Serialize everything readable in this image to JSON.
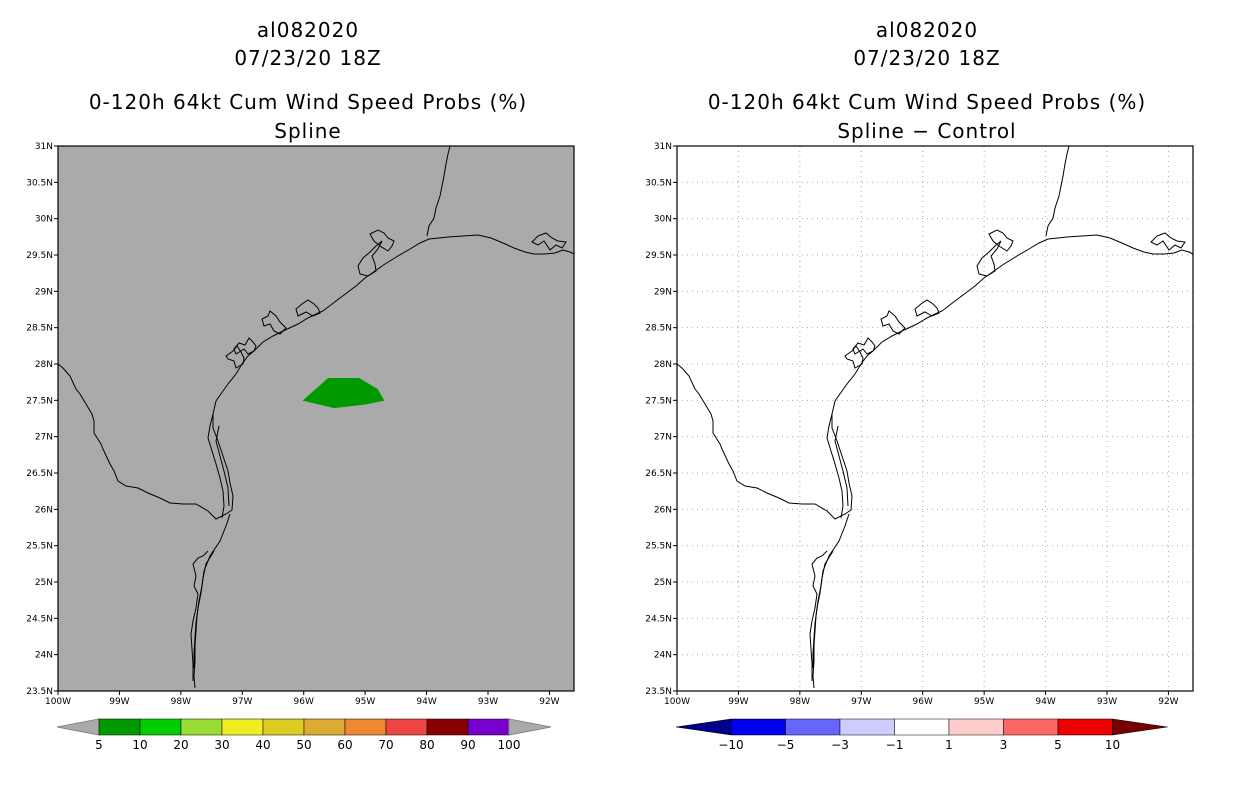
{
  "left_panel": {
    "storm_id": "al082020",
    "datetime": "07/23/20 18Z",
    "product": "0-120h 64kt Cum Wind Speed Probs (%)",
    "subtitle": "Spline",
    "background_color": "#aaaaaa",
    "colorbar": {
      "labels": [
        "5",
        "10",
        "20",
        "30",
        "40",
        "50",
        "60",
        "70",
        "80",
        "90",
        "100"
      ],
      "colors": [
        "#009900",
        "#00cc00",
        "#99dd33",
        "#eeee22",
        "#ddcc22",
        "#ddaa33",
        "#ee8833",
        "#ee4444",
        "#880000",
        "#7700cc"
      ],
      "end_color": "#aaaaaa"
    }
  },
  "right_panel": {
    "storm_id": "al082020",
    "datetime": "07/23/20 18Z",
    "product": "0-120h 64kt Cum Wind Speed Probs (%)",
    "subtitle": "Spline − Control",
    "background_color": "#ffffff",
    "colorbar": {
      "labels": [
        "−10",
        "−5",
        "−3",
        "−1",
        "1",
        "3",
        "5",
        "10"
      ],
      "colors": [
        "#0000ee",
        "#6666ff",
        "#ccccff",
        "#ffffff",
        "#ffcccc",
        "#ff6666",
        "#ee0000"
      ],
      "left_color": "#000088",
      "right_color": "#770000"
    }
  },
  "map": {
    "lat_labels": [
      "31N",
      "30.5N",
      "30N",
      "29.5N",
      "29N",
      "28.5N",
      "28N",
      "27.5N",
      "27N",
      "26.5N",
      "26N",
      "25.5N",
      "25N",
      "24.5N",
      "24N",
      "23.5N"
    ],
    "lon_labels": [
      "100W",
      "99W",
      "98W",
      "97W",
      "96W",
      "95W",
      "94W",
      "93W",
      "92W"
    ],
    "lat_range": [
      23.5,
      31
    ],
    "lon_range": [
      -100,
      -91.6
    ],
    "probability_contour": {
      "value_range": "5-10",
      "color": "#009900",
      "polygon_lonlat": [
        [
          -95.1,
          27.8
        ],
        [
          -94.8,
          27.65
        ],
        [
          -94.7,
          27.5
        ],
        [
          -95.0,
          27.45
        ],
        [
          -95.5,
          27.4
        ],
        [
          -96.0,
          27.5
        ],
        [
          -95.6,
          27.8
        ]
      ]
    }
  }
}
